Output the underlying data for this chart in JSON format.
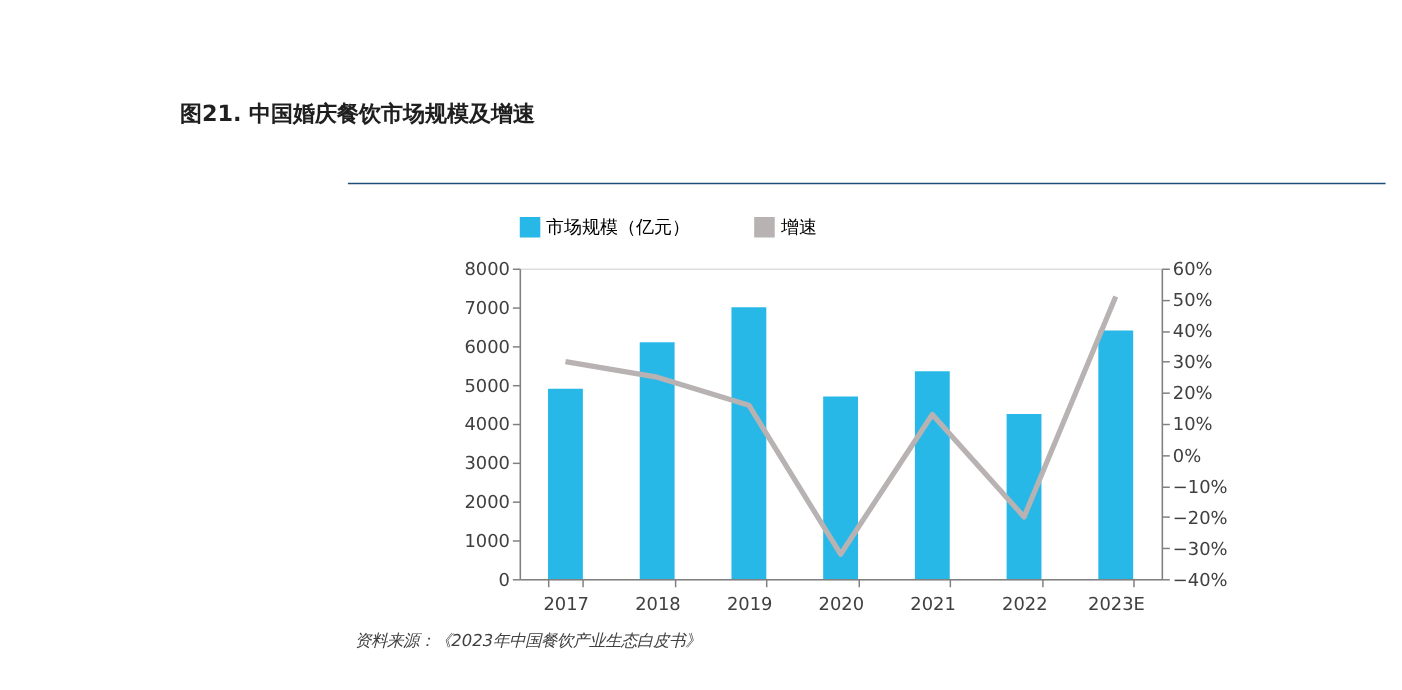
{
  "chart_data": {
    "type": "bar",
    "title": "图21. 中国婚庆餐饮市场规模及增速",
    "categories": [
      "2017",
      "2018",
      "2019",
      "2020",
      "2021",
      "2022",
      "2023E"
    ],
    "series": [
      {
        "name": "市场规模（亿元）",
        "color": "#27b8e8",
        "values": [
          4900,
          6100,
          7000,
          4700,
          5350,
          4250,
          6400
        ]
      },
      {
        "name": "增速",
        "type": "line",
        "axis": "y2",
        "color": "#b8b2b2",
        "values": [
          30,
          25,
          16,
          -32,
          13,
          -20,
          51
        ]
      }
    ],
    "ylim": [
      0,
      8000
    ],
    "yticks": [
      0,
      1000,
      2000,
      3000,
      4000,
      5000,
      6000,
      7000,
      8000
    ],
    "y2lim": [
      -40,
      60
    ],
    "y2ticks": [
      {
        "value": -40,
        "label": "−40%"
      },
      {
        "value": -30,
        "label": "−30%"
      },
      {
        "value": -20,
        "label": "−20%"
      },
      {
        "value": -10,
        "label": "−10%"
      },
      {
        "value": 0,
        "label": "0%"
      },
      {
        "value": 10,
        "label": "10%"
      },
      {
        "value": 20,
        "label": "20%"
      },
      {
        "value": 30,
        "label": "30%"
      },
      {
        "value": 40,
        "label": "40%"
      },
      {
        "value": 50,
        "label": "50%"
      },
      {
        "value": 60,
        "label": "60%"
      }
    ],
    "legend": "top",
    "grid": false,
    "marker": "none",
    "annotations": [
      "资料来源：《2023年中国餐饮产业生态白皮书》"
    ]
  }
}
